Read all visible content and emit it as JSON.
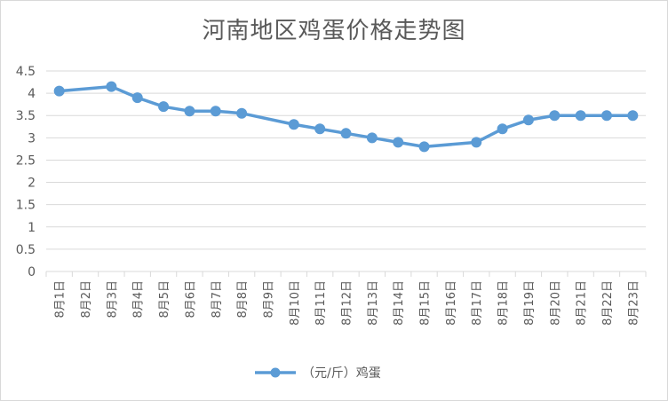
{
  "chart_data": {
    "type": "line",
    "title": "河南地区鸡蛋价格走势图",
    "categories": [
      "8月1日",
      "8月2日",
      "8月3日",
      "8月4日",
      "8月5日",
      "8月6日",
      "8月7日",
      "8月8日",
      "8月9日",
      "8月10日",
      "8月11日",
      "8月12日",
      "8月13日",
      "8月14日",
      "8月15日",
      "8月16日",
      "8月17日",
      "8月18日",
      "8月19日",
      "8月20日",
      "8月21日",
      "8月22日",
      "8月23日"
    ],
    "series": [
      {
        "name": "（元/斤）鸡蛋",
        "values": [
          4.05,
          null,
          4.15,
          3.9,
          3.7,
          3.6,
          3.6,
          3.55,
          null,
          3.3,
          3.2,
          3.1,
          3.0,
          2.9,
          2.8,
          null,
          2.9,
          3.2,
          3.4,
          3.5,
          3.5,
          3.5,
          3.5
        ],
        "color": "#5b9bd5"
      }
    ],
    "ylim": [
      0,
      4.5
    ],
    "yticks": [
      "0",
      "0.5",
      "1",
      "1.5",
      "2",
      "2.5",
      "3",
      "3.5",
      "4",
      "4.5"
    ],
    "grid": true,
    "legend_position": "bottom",
    "xlabel": "",
    "ylabel": ""
  }
}
